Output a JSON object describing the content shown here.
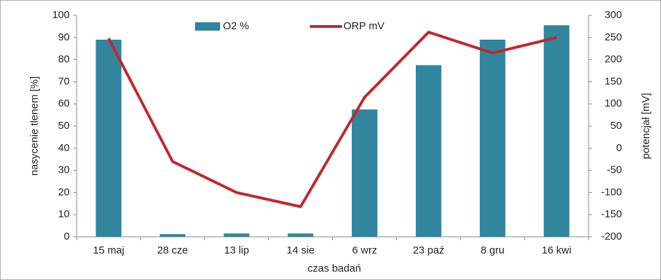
{
  "chart_data": {
    "type": "combo",
    "x_label": "czas badań",
    "y_label": "nasycenie tlenem [%]",
    "y2_label": "potencjał [mV]",
    "categories": [
      "15 maj",
      "28 cze",
      "13 lip",
      "14 sie",
      "6 wrz",
      "23 paź",
      "8 gru",
      "16 kwi"
    ],
    "series": [
      {
        "name": "O2 %",
        "type": "bar",
        "color": "#31859c",
        "values": [
          89,
          1.2,
          1.5,
          1.5,
          57.5,
          77.5,
          89,
          95.5
        ]
      },
      {
        "name": "ORP mV",
        "type": "line",
        "axis": "y2",
        "color": "#c0272d",
        "values": [
          248,
          -30,
          -100,
          -132,
          115,
          262,
          215,
          250
        ]
      }
    ],
    "ylim": [
      0,
      100
    ],
    "yticks": [
      0,
      10,
      20,
      30,
      40,
      50,
      60,
      70,
      80,
      90,
      100
    ],
    "y2lim": [
      -200,
      300
    ],
    "y2ticks": [
      -200,
      -150,
      -100,
      -50,
      0,
      50,
      100,
      150,
      200,
      250,
      300
    ],
    "grid": false,
    "legend": "top"
  }
}
